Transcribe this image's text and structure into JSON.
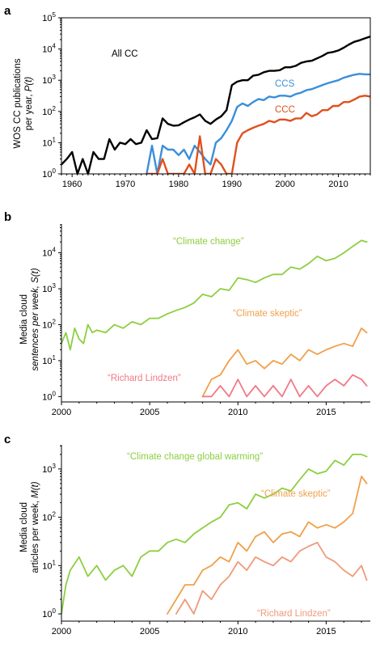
{
  "chart_data": [
    {
      "panel": "a",
      "type": "line",
      "ylabel_line1": "WOS CC publications",
      "ylabel_line2_prefix": "per year, ",
      "ylabel_line2_var": "P(t)",
      "xlim": [
        1958,
        2016
      ],
      "ylim_log10": [
        0,
        5
      ],
      "y_scale": "log",
      "xticks": [
        1960,
        1970,
        1980,
        1990,
        2000,
        2010
      ],
      "yticks_exp": [
        0,
        1,
        2,
        3,
        4,
        5
      ],
      "series": [
        {
          "name": "All CC",
          "color": "#000000",
          "x": [
            1958,
            1959,
            1960,
            1961,
            1962,
            1963,
            1964,
            1965,
            1966,
            1967,
            1968,
            1969,
            1970,
            1971,
            1972,
            1973,
            1974,
            1975,
            1976,
            1977,
            1978,
            1979,
            1980,
            1981,
            1982,
            1983,
            1984,
            1985,
            1986,
            1987,
            1988,
            1989,
            1990,
            1991,
            1992,
            1993,
            1994,
            1995,
            1996,
            1997,
            1998,
            1999,
            2000,
            2001,
            2002,
            2003,
            2004,
            2005,
            2006,
            2007,
            2008,
            2009,
            2010,
            2011,
            2012,
            2013,
            2014,
            2015,
            2016
          ],
          "y": [
            2,
            3,
            5,
            1,
            3,
            1,
            5,
            3,
            3,
            13,
            6,
            10,
            9,
            13,
            9,
            10,
            25,
            13,
            14,
            60,
            40,
            35,
            36,
            45,
            55,
            65,
            80,
            50,
            40,
            55,
            70,
            110,
            700,
            900,
            1000,
            1000,
            1400,
            1500,
            1800,
            2000,
            2000,
            2100,
            2600,
            2600,
            2900,
            3600,
            4000,
            4200,
            5000,
            6000,
            7500,
            8000,
            9000,
            11000,
            14000,
            17000,
            19000,
            22000,
            25000
          ]
        },
        {
          "name": "CCS",
          "color": "#3a8fd9",
          "x": [
            1974,
            1975,
            1976,
            1977,
            1978,
            1979,
            1980,
            1981,
            1982,
            1983,
            1984,
            1985,
            1986,
            1987,
            1988,
            1989,
            1990,
            1991,
            1992,
            1993,
            1994,
            1995,
            1996,
            1997,
            1998,
            1999,
            2000,
            2001,
            2002,
            2003,
            2004,
            2005,
            2006,
            2007,
            2008,
            2009,
            2010,
            2011,
            2012,
            2013,
            2014,
            2015,
            2016
          ],
          "y": [
            1,
            8,
            1,
            8,
            6,
            6,
            4,
            6,
            3,
            8,
            5,
            3,
            2,
            10,
            14,
            25,
            50,
            140,
            180,
            150,
            200,
            250,
            230,
            300,
            280,
            320,
            320,
            300,
            360,
            400,
            480,
            520,
            600,
            700,
            800,
            900,
            1000,
            1200,
            1350,
            1500,
            1600,
            1550,
            1550
          ]
        },
        {
          "name": "CCC",
          "color": "#e0501e",
          "x": [
            1974,
            1975,
            1976,
            1977,
            1978,
            1979,
            1980,
            1981,
            1982,
            1983,
            1984,
            1985,
            1986,
            1987,
            1988,
            1989,
            1990,
            1991,
            1992,
            1993,
            1994,
            1995,
            1996,
            1997,
            1998,
            1999,
            2000,
            2001,
            2002,
            2003,
            2004,
            2005,
            2006,
            2007,
            2008,
            2009,
            2010,
            2011,
            2012,
            2013,
            2014,
            2015,
            2016
          ],
          "y": [
            1,
            1,
            1,
            3,
            1,
            1,
            1,
            1,
            2,
            1,
            16,
            1,
            1,
            3,
            2,
            1,
            1,
            10,
            20,
            25,
            30,
            35,
            40,
            50,
            45,
            55,
            55,
            50,
            60,
            60,
            90,
            70,
            80,
            110,
            110,
            150,
            150,
            200,
            200,
            240,
            300,
            320,
            300
          ]
        }
      ]
    },
    {
      "panel": "b",
      "type": "line",
      "ylabel_line1": "Media cloud",
      "ylabel_line2_prefix": "sentences per week, ",
      "ylabel_line2_var": "S(t)",
      "xlim": [
        2000,
        2017.5
      ],
      "ylim_log10": [
        -0.15,
        4.8
      ],
      "y_scale": "log",
      "xticks": [
        2000,
        2005,
        2010,
        2015
      ],
      "yticks_exp": [
        0,
        1,
        2,
        3,
        4
      ],
      "series": [
        {
          "name": "“Climate change”",
          "color": "#8ccf40",
          "x": [
            2000,
            2000.25,
            2000.5,
            2000.75,
            2001,
            2001.25,
            2001.5,
            2001.75,
            2002,
            2002.5,
            2003,
            2003.5,
            2004,
            2004.5,
            2005,
            2005.5,
            2006,
            2006.5,
            2007,
            2007.5,
            2008,
            2008.5,
            2009,
            2009.5,
            2010,
            2010.5,
            2011,
            2011.5,
            2012,
            2012.5,
            2013,
            2013.5,
            2014,
            2014.5,
            2015,
            2015.5,
            2016,
            2016.5,
            2017,
            2017.3
          ],
          "y": [
            30,
            60,
            20,
            80,
            40,
            30,
            100,
            60,
            70,
            60,
            100,
            80,
            120,
            100,
            150,
            150,
            200,
            250,
            300,
            400,
            700,
            600,
            1000,
            900,
            2000,
            1800,
            1500,
            2000,
            2500,
            2500,
            4000,
            3500,
            5000,
            8000,
            6000,
            7000,
            10000,
            15000,
            22000,
            20000
          ]
        },
        {
          "name": "“Climate skeptic”",
          "color": "#f0a04b",
          "x": [
            2008,
            2008.5,
            2009,
            2009.5,
            2010,
            2010.5,
            2011,
            2011.5,
            2012,
            2012.5,
            2013,
            2013.5,
            2014,
            2014.5,
            2015,
            2015.5,
            2016,
            2016.5,
            2017,
            2017.3
          ],
          "y": [
            1,
            3,
            4,
            10,
            20,
            8,
            10,
            6,
            10,
            8,
            15,
            10,
            20,
            15,
            20,
            25,
            30,
            25,
            80,
            60
          ]
        },
        {
          "name": "“Richard Lindzen”",
          "color": "#f07a86",
          "x": [
            2008,
            2008.5,
            2009,
            2009.5,
            2010,
            2010.5,
            2011,
            2011.5,
            2012,
            2012.5,
            2013,
            2013.5,
            2014,
            2014.5,
            2015,
            2015.5,
            2016,
            2016.5,
            2017,
            2017.3
          ],
          "y": [
            1,
            1,
            2,
            1,
            3,
            1,
            2,
            1,
            2,
            1,
            3,
            1,
            2,
            1,
            2,
            3,
            2,
            4,
            3,
            2
          ]
        }
      ]
    },
    {
      "panel": "c",
      "type": "line",
      "ylabel_line1": "Media cloud",
      "ylabel_line2_prefix": "articles per week, ",
      "ylabel_line2_var": "M(t)",
      "xlim": [
        2000,
        2017.5
      ],
      "ylim_log10": [
        -0.15,
        3.5
      ],
      "y_scale": "log",
      "xticks": [
        2000,
        2005,
        2010,
        2015
      ],
      "yticks_exp": [
        0,
        1,
        2,
        3
      ],
      "series": [
        {
          "name": "“Climate change global warming”",
          "color": "#8ccf40",
          "x": [
            2000,
            2000.25,
            2000.5,
            2001,
            2001.5,
            2002,
            2002.5,
            2003,
            2003.5,
            2004,
            2004.5,
            2005,
            2005.5,
            2006,
            2006.5,
            2007,
            2007.5,
            2008,
            2008.5,
            2009,
            2009.5,
            2010,
            2010.5,
            2011,
            2011.5,
            2012,
            2012.5,
            2013,
            2013.5,
            2014,
            2014.5,
            2015,
            2015.5,
            2016,
            2016.5,
            2017,
            2017.3
          ],
          "y": [
            1,
            4,
            8,
            15,
            6,
            10,
            5,
            8,
            10,
            6,
            15,
            20,
            20,
            30,
            35,
            30,
            45,
            60,
            80,
            100,
            180,
            200,
            150,
            300,
            250,
            300,
            400,
            350,
            600,
            1000,
            800,
            900,
            1500,
            1200,
            2000,
            2000,
            1800
          ]
        },
        {
          "name": "“Climate skeptic”",
          "color": "#f0a04b",
          "x": [
            2006,
            2006.5,
            2007,
            2007.5,
            2008,
            2008.5,
            2009,
            2009.5,
            2010,
            2010.5,
            2011,
            2011.5,
            2012,
            2012.5,
            2013,
            2013.5,
            2014,
            2014.5,
            2015,
            2015.5,
            2016,
            2016.5,
            2017,
            2017.3
          ],
          "y": [
            1,
            2,
            4,
            4,
            8,
            10,
            15,
            12,
            30,
            20,
            40,
            50,
            30,
            45,
            50,
            40,
            80,
            60,
            70,
            60,
            80,
            120,
            700,
            500
          ]
        },
        {
          "name": "“Richard Lindzen”",
          "color": "#ef9a7b",
          "x": [
            2006.5,
            2007,
            2007.5,
            2008,
            2008.5,
            2009,
            2009.5,
            2010,
            2010.5,
            2011,
            2011.5,
            2012,
            2012.5,
            2013,
            2013.5,
            2014,
            2014.5,
            2015,
            2015.5,
            2016,
            2016.5,
            2017,
            2017.3
          ],
          "y": [
            1,
            2,
            1,
            3,
            2,
            4,
            6,
            12,
            8,
            15,
            12,
            10,
            15,
            12,
            20,
            25,
            30,
            15,
            12,
            8,
            6,
            10,
            5
          ]
        }
      ]
    }
  ]
}
